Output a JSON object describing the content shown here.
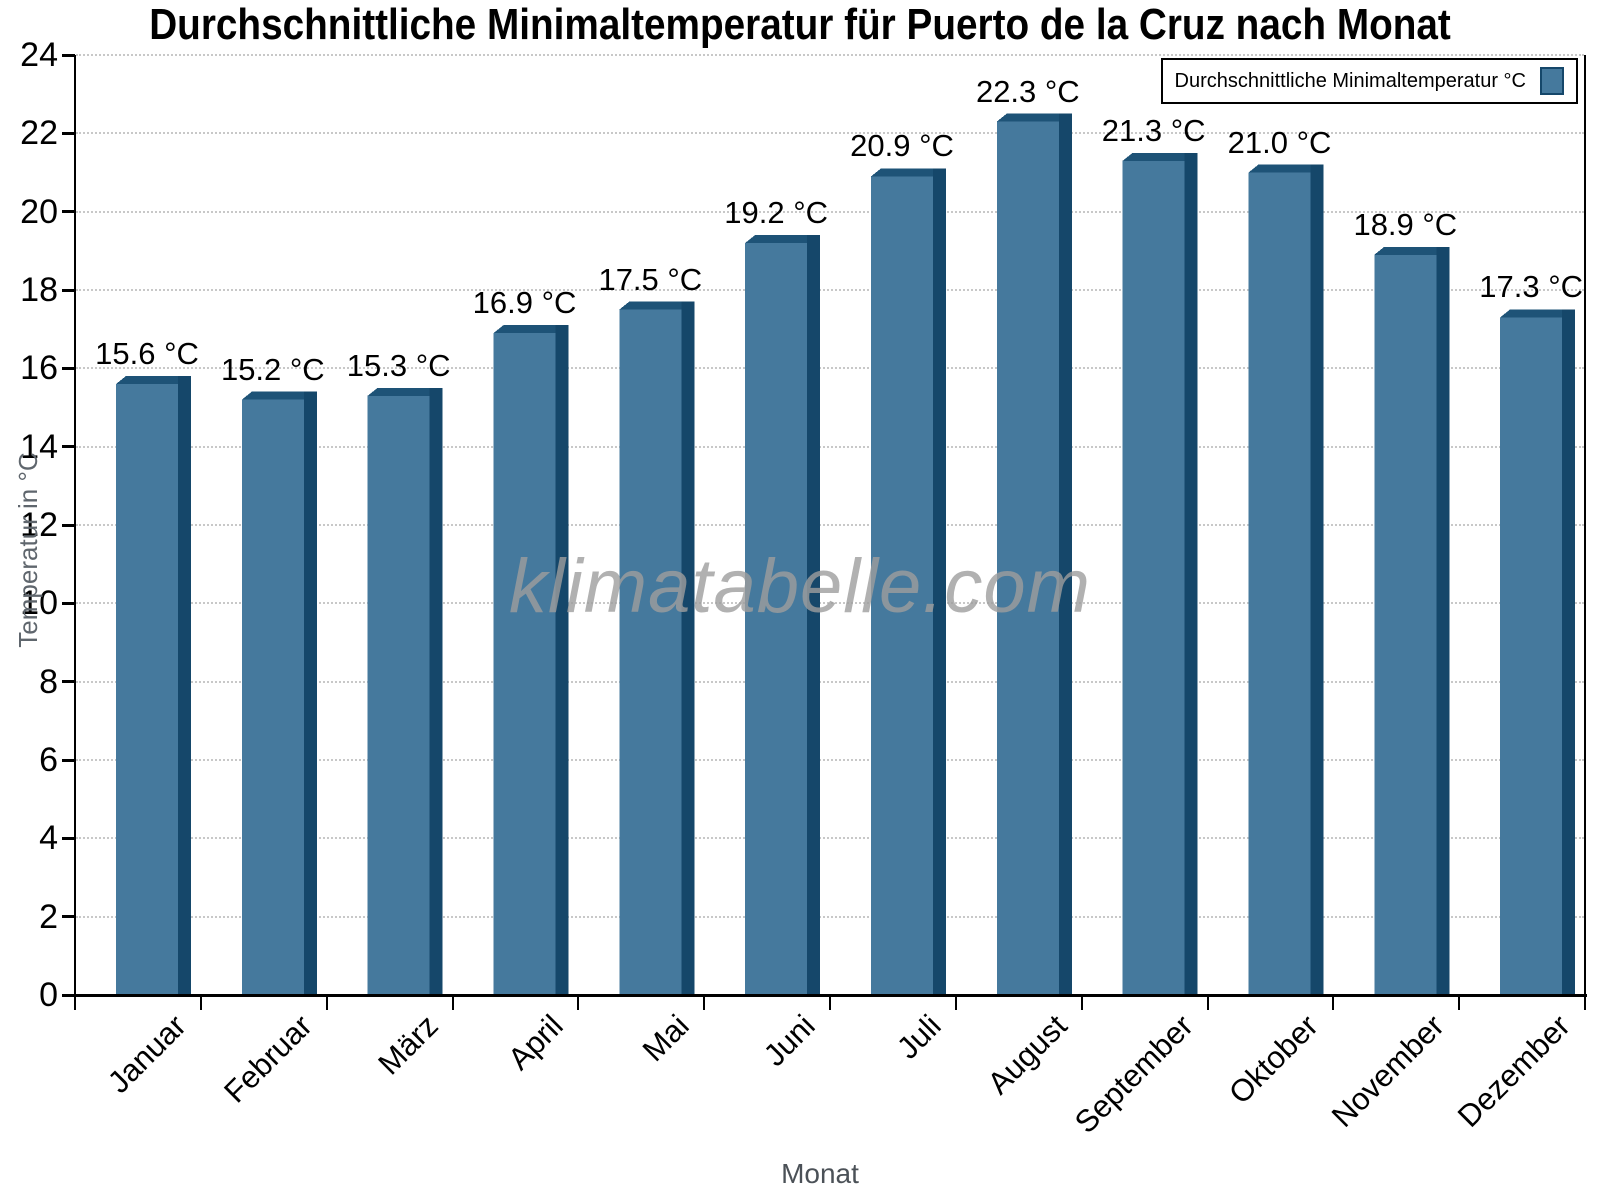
{
  "title": "Durchschnittliche Minimaltemperatur für Puerto de la Cruz nach Monat",
  "watermark": "klimatabelle.com",
  "legend": {
    "label": "Durchschnittliche Minimaltemperatur °C"
  },
  "axes": {
    "y_title": "Temperatur in °C",
    "x_title": "Monat"
  },
  "colors": {
    "bar_fill": "#45799D",
    "bar_side": "#15476A",
    "bar_top": "#1E5377",
    "grid": "#C8C8C8",
    "axis": "#000000",
    "axis_title_gray": "#5F666D",
    "watermark_gray": "#9E9E9E"
  },
  "chart_data": {
    "type": "bar",
    "title": "Durchschnittliche Minimaltemperatur für Puerto de la Cruz nach Monat",
    "series_name": "Durchschnittliche Minimaltemperatur °C",
    "categories": [
      "Januar",
      "Februar",
      "März",
      "April",
      "Mai",
      "Juni",
      "Juli",
      "August",
      "September",
      "Oktober",
      "November",
      "Dezember"
    ],
    "values": [
      15.6,
      15.2,
      15.3,
      16.9,
      17.5,
      19.2,
      20.9,
      22.3,
      21.3,
      21.0,
      18.9,
      17.3
    ],
    "unit": "°C",
    "value_label_format": "{value} °C",
    "xlabel": "Monat",
    "ylabel": "Temperatur in °C",
    "ylim": [
      0,
      24
    ],
    "ytick_step": 2,
    "grid": true,
    "legend_position": "top-right"
  }
}
